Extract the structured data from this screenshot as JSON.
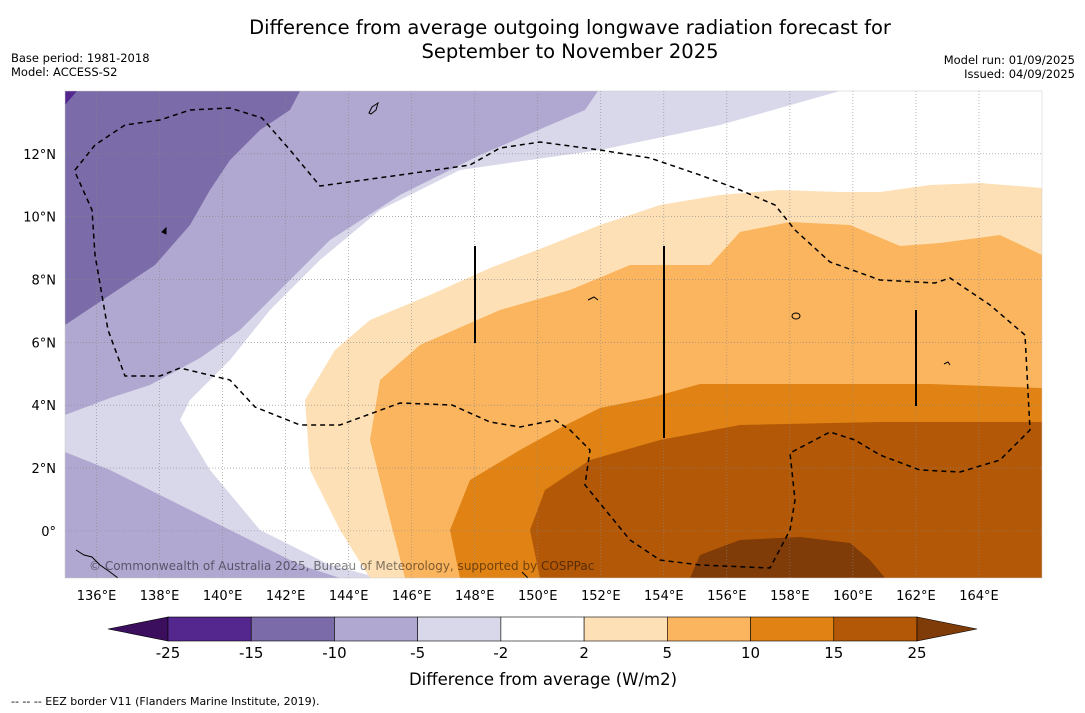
{
  "header": {
    "title_line1": "Difference from average outgoing longwave radiation forecast for",
    "title_line2": "September to November 2025",
    "base_period": "Base period: 1981-2018",
    "model": "Model: ACCESS-S2",
    "model_run": "Model run: 01/09/2025",
    "issued": "Issued: 04/09/2025"
  },
  "map": {
    "lon_range": [
      135,
      166
    ],
    "lat_range": [
      -1.5,
      14
    ],
    "longitude_ticks": [
      "136°E",
      "138°E",
      "140°E",
      "142°E",
      "144°E",
      "146°E",
      "148°E",
      "150°E",
      "152°E",
      "154°E",
      "156°E",
      "158°E",
      "160°E",
      "162°E",
      "164°E"
    ],
    "latitude_ticks": [
      "12°N",
      "10°N",
      "8°N",
      "6°N",
      "4°N",
      "2°N",
      "0°"
    ],
    "copyright": "© Commonwealth of Australia 2025, Bureau of Meteorology, supported by COSPPac",
    "gridlines": true
  },
  "colorbar": {
    "title": "Difference from average (W/m2)",
    "bounds": [
      "-25",
      "-15",
      "-10",
      "-5",
      "-2",
      "2",
      "5",
      "10",
      "15",
      "25"
    ],
    "colors": {
      "under": "#3b0f5e",
      "bins": [
        "#54278f",
        "#7b6ba8",
        "#b0a8d0",
        "#d8d8ea",
        "#ffffff",
        "#fee0b6",
        "#fbb55e",
        "#e08214",
        "#b35806"
      ],
      "over": "#7f3b08"
    }
  },
  "footnote": "--  --  -- EEZ border V11 (Flanders Marine Institute, 2019)."
}
